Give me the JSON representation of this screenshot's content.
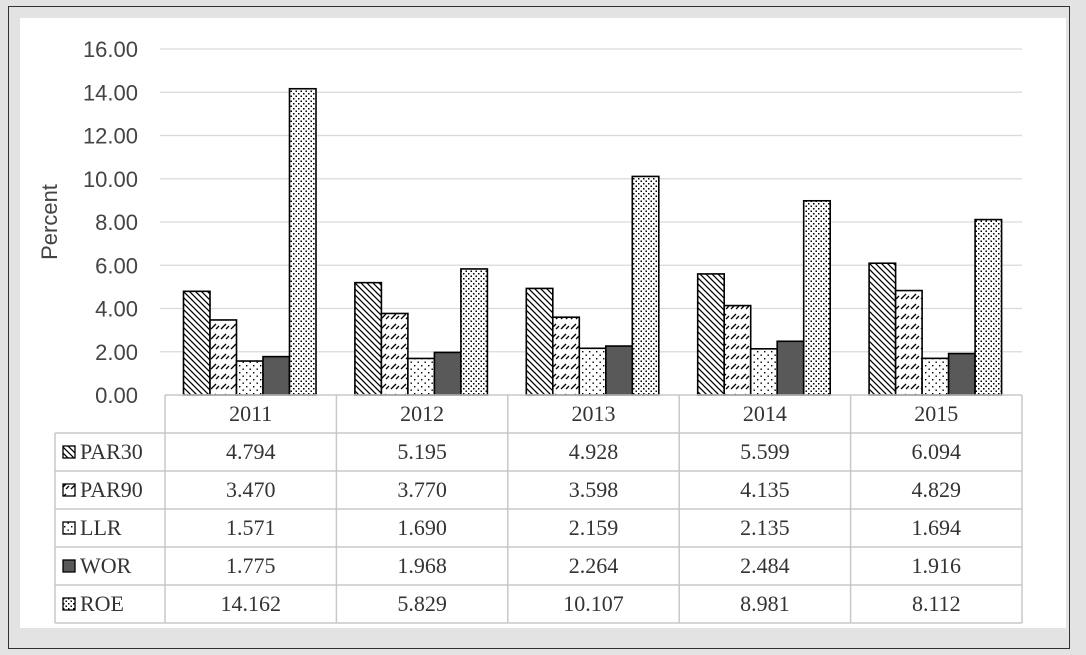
{
  "chart_data": {
    "type": "bar",
    "ylabel": "Percent",
    "ylim": [
      0,
      16
    ],
    "yticks": [
      "0.00",
      "2.00",
      "4.00",
      "6.00",
      "8.00",
      "10.00",
      "12.00",
      "14.00",
      "16.00"
    ],
    "grid": true,
    "legend": "data-table",
    "categories": [
      "2011",
      "2012",
      "2013",
      "2014",
      "2015"
    ],
    "series": [
      {
        "name": "PAR30",
        "pattern": "diagonal-down",
        "values": [
          "4.794",
          "5.195",
          "4.928",
          "5.599",
          "6.094"
        ]
      },
      {
        "name": "PAR90",
        "pattern": "diagonal-up-dashed",
        "values": [
          "3.470",
          "3.770",
          "3.598",
          "4.135",
          "4.829"
        ]
      },
      {
        "name": "LLR",
        "pattern": "sparse-dots",
        "values": [
          "1.571",
          "1.690",
          "2.159",
          "2.135",
          "1.694"
        ]
      },
      {
        "name": "WOR",
        "pattern": "solid",
        "color": "#595959",
        "values": [
          "1.775",
          "1.968",
          "2.264",
          "2.484",
          "1.916"
        ]
      },
      {
        "name": "ROE",
        "pattern": "dense-dots",
        "values": [
          "14.162",
          "5.829",
          "10.107",
          "8.981",
          "8.112"
        ]
      }
    ]
  }
}
